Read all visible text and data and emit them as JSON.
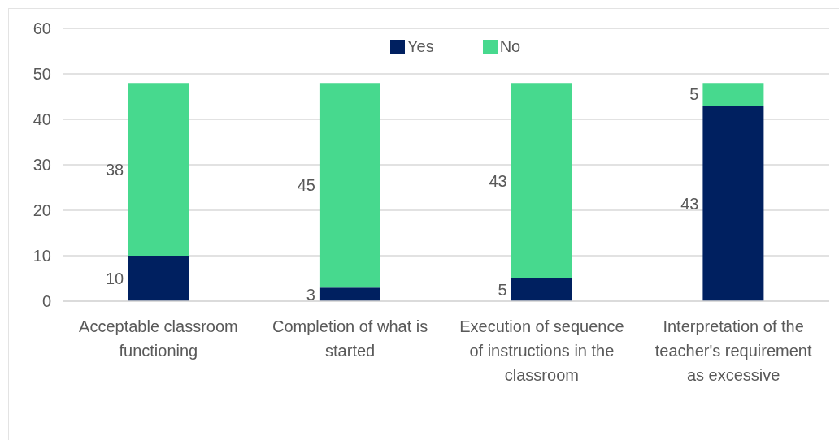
{
  "chart_data": {
    "type": "bar",
    "categories": [
      "Acceptable classroom functioning",
      "Completion of what is started",
      "Execution of sequence of instructions in the classroom",
      "Interpretation of the teacher's requirement as excessive"
    ],
    "series": [
      {
        "name": "Yes",
        "color": "#002060",
        "values": [
          10,
          3,
          5,
          43
        ]
      },
      {
        "name": "No",
        "color": "#47d98e",
        "values": [
          38,
          45,
          43,
          5
        ]
      }
    ],
    "stacked": true,
    "ylim": [
      0,
      60
    ],
    "yticks": [
      0,
      10,
      20,
      30,
      40,
      50,
      60
    ],
    "grid": "y",
    "legend": "top",
    "data_labels": true
  }
}
